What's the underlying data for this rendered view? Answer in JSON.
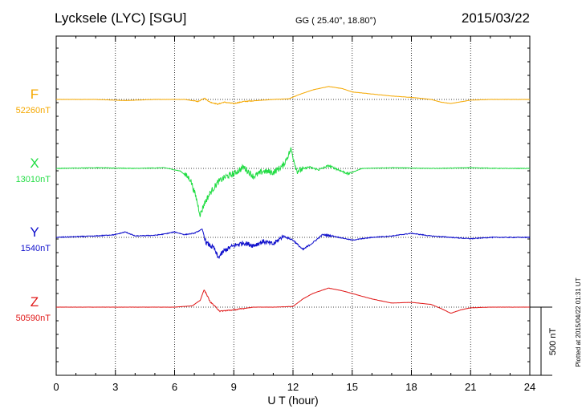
{
  "header": {
    "station": "Lycksele (LYC)  [SGU]",
    "coords": "GG ( 25.40°,  18.80°)",
    "date": "2015/03/22"
  },
  "footer": {
    "plotted": "Plotted at 2015/04/22 01:31  UT"
  },
  "chart_data": {
    "type": "line",
    "xlabel": "U T (hour)",
    "xlim": [
      0,
      24
    ],
    "xticks": [
      0,
      3,
      6,
      9,
      12,
      15,
      18,
      21,
      24
    ],
    "scale_bar": {
      "label": "500 nT",
      "value": 500
    },
    "grid": "dotted vertical at every 3 hours",
    "series": [
      {
        "name": "F",
        "baseline_label": "52260nT",
        "color": "#f5a800",
        "x": [
          0,
          2,
          3.5,
          5,
          6.5,
          7.2,
          7.5,
          7.8,
          8.2,
          8.5,
          9,
          9.5,
          10,
          11,
          11.8,
          12.3,
          13,
          13.8,
          14.5,
          15,
          16,
          17,
          18,
          19,
          19.5,
          20,
          21,
          22,
          23,
          24
        ],
        "values": [
          0,
          0,
          -8,
          0,
          0,
          -15,
          10,
          -20,
          -35,
          -20,
          -30,
          -15,
          -10,
          0,
          5,
          35,
          70,
          95,
          80,
          55,
          40,
          25,
          15,
          0,
          -20,
          -30,
          -5,
          0,
          0,
          0
        ]
      },
      {
        "name": "X",
        "baseline_label": "13010nT",
        "color": "#22dd44",
        "x": [
          0,
          2,
          4,
          5.5,
          6.3,
          6.8,
          7.1,
          7.3,
          7.5,
          7.8,
          8.2,
          8.6,
          9,
          9.5,
          10,
          10.5,
          11,
          11.5,
          11.9,
          12.2,
          12.8,
          13.3,
          13.8,
          14.3,
          14.8,
          15.5,
          17,
          19,
          21,
          22.5,
          24
        ],
        "values": [
          0,
          5,
          0,
          5,
          -20,
          -80,
          -220,
          -340,
          -260,
          -180,
          -100,
          -60,
          -40,
          10,
          -60,
          -20,
          -30,
          20,
          140,
          -20,
          10,
          -10,
          20,
          -10,
          -40,
          0,
          5,
          0,
          5,
          0,
          0
        ]
      },
      {
        "name": "Y",
        "baseline_label": "1540nT",
        "color": "#1010cc",
        "x": [
          0,
          2,
          3,
          3.5,
          4,
          5,
          5.5,
          6,
          6.5,
          7,
          7.4,
          7.6,
          8,
          8.2,
          8.5,
          9,
          9.5,
          10,
          10.5,
          11,
          11.5,
          12,
          12.5,
          13,
          13.5,
          14,
          15,
          16,
          17,
          18,
          18.5,
          19,
          20,
          21,
          22,
          23,
          24
        ],
        "values": [
          0,
          10,
          20,
          40,
          10,
          15,
          25,
          40,
          20,
          30,
          60,
          -40,
          -80,
          -150,
          -100,
          -60,
          -40,
          -60,
          -30,
          -50,
          10,
          -20,
          -90,
          -40,
          20,
          10,
          -20,
          0,
          10,
          30,
          20,
          10,
          0,
          -10,
          0,
          0,
          0
        ]
      },
      {
        "name": "Z",
        "baseline_label": "50590nT",
        "color": "#e01818",
        "x": [
          0,
          2,
          4,
          6,
          6.9,
          7.3,
          7.5,
          7.8,
          8.3,
          9,
          10,
          11,
          12,
          12.5,
          13,
          13.8,
          14.5,
          15,
          16,
          17,
          18,
          19,
          19.5,
          20,
          20.5,
          21,
          22,
          23,
          24
        ],
        "values": [
          0,
          0,
          0,
          0,
          10,
          50,
          130,
          40,
          -30,
          -20,
          0,
          0,
          5,
          60,
          100,
          140,
          120,
          100,
          60,
          30,
          35,
          20,
          -10,
          -45,
          -20,
          -5,
          0,
          0,
          0
        ]
      }
    ]
  }
}
